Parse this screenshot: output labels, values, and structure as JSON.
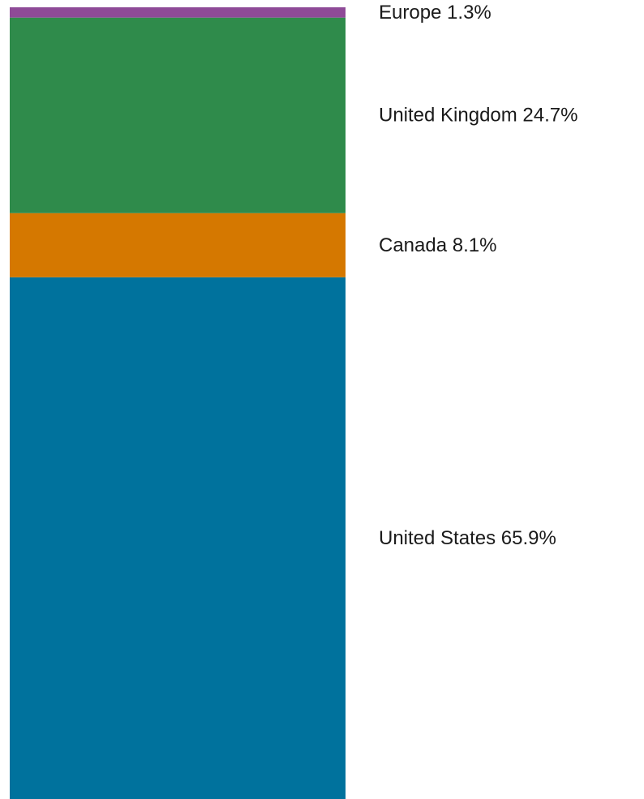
{
  "chart_data": {
    "type": "bar",
    "orientation": "stacked-vertical",
    "stack_order": "bottom-to-top",
    "categories": [
      "United States",
      "Canada",
      "United Kingdom",
      "Europe"
    ],
    "values": [
      65.9,
      8.1,
      24.7,
      1.3
    ],
    "unit": "%",
    "labels": [
      "United States 65.9%",
      "Canada 8.1%",
      "United Kingdom 24.7%",
      "Europe 1.3%"
    ],
    "colors": [
      "#00729d",
      "#d57800",
      "#2f8b4b",
      "#8e4a97"
    ],
    "title": "",
    "xlabel": "",
    "ylabel": "",
    "ylim": [
      0,
      100
    ],
    "grid": false,
    "legend": "labels beside segments (right)"
  }
}
